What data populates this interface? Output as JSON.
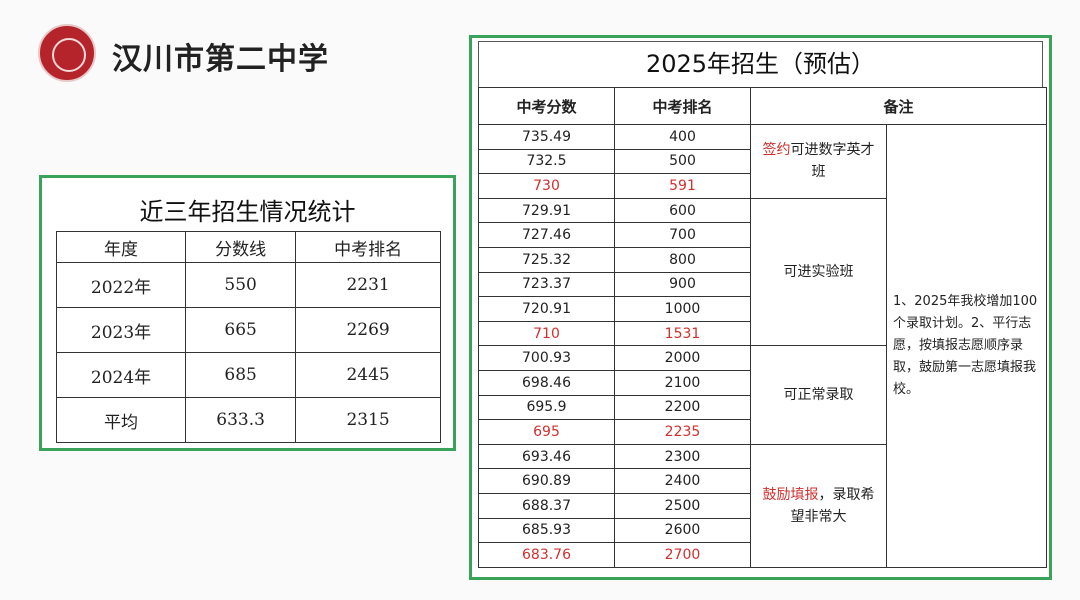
{
  "header": {
    "school": "汉川市第二中学"
  },
  "history": {
    "title": "近三年招生情况统计",
    "columns": [
      "年度",
      "分数线",
      "中考排名"
    ],
    "rows": [
      [
        "2022年",
        "550",
        "2231"
      ],
      [
        "2023年",
        "665",
        "2269"
      ],
      [
        "2024年",
        "685",
        "2445"
      ],
      [
        "平均",
        "633.3",
        "2315"
      ]
    ]
  },
  "forecast": {
    "title": "2025年招生（预估）",
    "columns": [
      "中考分数",
      "中考排名",
      "备注"
    ],
    "rows": [
      [
        "735.49",
        "400"
      ],
      [
        "732.5",
        "500"
      ],
      [
        "730",
        "591"
      ],
      [
        "729.91",
        "600"
      ],
      [
        "727.46",
        "700"
      ],
      [
        "725.32",
        "800"
      ],
      [
        "723.37",
        "900"
      ],
      [
        "720.91",
        "1000"
      ],
      [
        "710",
        "1531"
      ],
      [
        "700.93",
        "2000"
      ],
      [
        "698.46",
        "2100"
      ],
      [
        "695.9",
        "2200"
      ],
      [
        "695",
        "2235"
      ],
      [
        "693.46",
        "2300"
      ],
      [
        "690.89",
        "2400"
      ],
      [
        "688.37",
        "2500"
      ],
      [
        "685.93",
        "2600"
      ],
      [
        "683.76",
        "2700"
      ]
    ],
    "remarks": [
      {
        "highlight": "签约",
        "text": "可进数字英才班"
      },
      {
        "text": "可进实验班"
      },
      {
        "text": "可正常录取"
      },
      {
        "highlight": "鼓励填报",
        "text": "，录取希望非常大"
      }
    ],
    "note": "1、2025年我校增加100个录取计划。2、平行志愿，按填报志愿顺序录取，鼓励第一志愿填报我校。",
    "highlight_color": "#d0302e"
  }
}
